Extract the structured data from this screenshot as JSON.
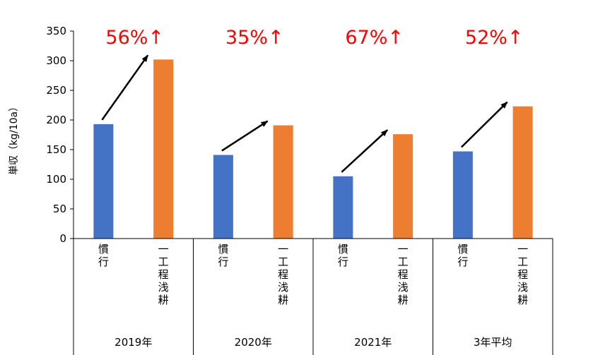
{
  "chart_data": {
    "type": "bar",
    "ylabel": "単収（kg/10a）",
    "ylim": [
      0,
      350
    ],
    "yticks": [
      "0",
      "50",
      "100",
      "150",
      "200",
      "250",
      "300",
      "350"
    ],
    "grid": false,
    "groups": [
      {
        "label": "2019年",
        "bars": [
          {
            "label": "慣行",
            "value": 193
          },
          {
            "label": "一工程浅耕",
            "value": 302
          }
        ],
        "change": "56%↑"
      },
      {
        "label": "2020年",
        "bars": [
          {
            "label": "慣行",
            "value": 141
          },
          {
            "label": "一工程浅耕",
            "value": 191
          }
        ],
        "change": "35%↑"
      },
      {
        "label": "2021年",
        "bars": [
          {
            "label": "慣行",
            "value": 105
          },
          {
            "label": "一工程浅耕",
            "value": 176
          }
        ],
        "change": "67%↑"
      },
      {
        "label": "3年平均",
        "bars": [
          {
            "label": "慣行",
            "value": 147
          },
          {
            "label": "一工程浅耕",
            "value": 223
          }
        ],
        "change": "52%↑"
      }
    ],
    "colors": {
      "慣行": "#4472c4",
      "一工程浅耕": "#ed7d31"
    }
  }
}
